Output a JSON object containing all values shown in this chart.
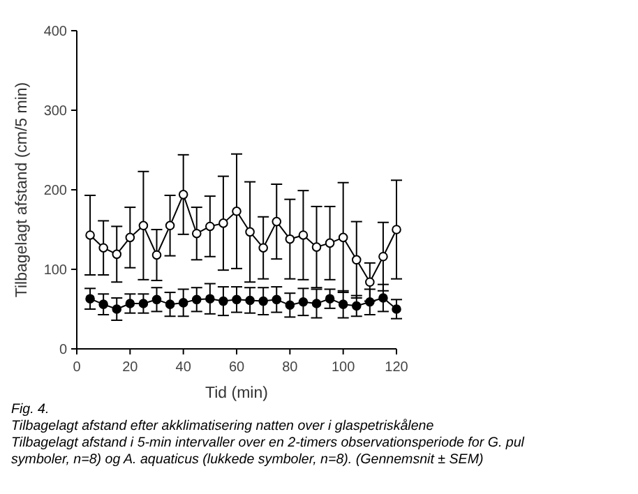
{
  "chart_data": {
    "type": "line",
    "xlabel": "Tid (min)",
    "ylabel": "Tilbagelagt afstand (cm/5 min)",
    "x": [
      5,
      10,
      15,
      20,
      25,
      30,
      35,
      40,
      45,
      50,
      55,
      60,
      65,
      70,
      75,
      80,
      85,
      90,
      95,
      100,
      105,
      110,
      115,
      120
    ],
    "series": [
      {
        "color": "#ffffff",
        "values": [
          143,
          127,
          119,
          140,
          155,
          118,
          155,
          194,
          145,
          154,
          158,
          173,
          147,
          127,
          160,
          138,
          143,
          128,
          133,
          140,
          112,
          84,
          116,
          150
        ],
        "errors": [
          50,
          34,
          35,
          38,
          68,
          32,
          38,
          50,
          33,
          38,
          59,
          72,
          63,
          39,
          47,
          50,
          56,
          51,
          46,
          69,
          48,
          24,
          43,
          62
        ]
      },
      {
        "color": "#000000",
        "values": [
          63,
          56,
          50,
          57,
          57,
          62,
          56,
          58,
          62,
          63,
          60,
          62,
          61,
          60,
          62,
          55,
          59,
          57,
          63,
          56,
          54,
          59,
          64,
          50
        ],
        "errors": [
          13,
          13,
          14,
          12,
          12,
          15,
          15,
          17,
          15,
          19,
          18,
          16,
          16,
          17,
          16,
          15,
          17,
          18,
          12,
          17,
          13,
          16,
          17,
          12
        ]
      }
    ],
    "xlim": [
      0,
      120
    ],
    "xticks": [
      0,
      20,
      40,
      60,
      80,
      100,
      120
    ],
    "ylim": [
      0,
      400
    ],
    "yticks": [
      0,
      100,
      200,
      300,
      400
    ],
    "grid": false,
    "marker": "circle",
    "line_style": "solid",
    "annotations": [
      "Fig. 4.",
      "Tilbagelagt afstand efter akklimatisering natten over i glaspetriskålene",
      "Tilbagelagt afstand i 5-min intervaller over en 2-timers observationsperiode for G. pul",
      "symboler, n=8) og A. aquaticus (lukkede symboler, n=8). (Gennemsnit ± SEM)"
    ]
  }
}
